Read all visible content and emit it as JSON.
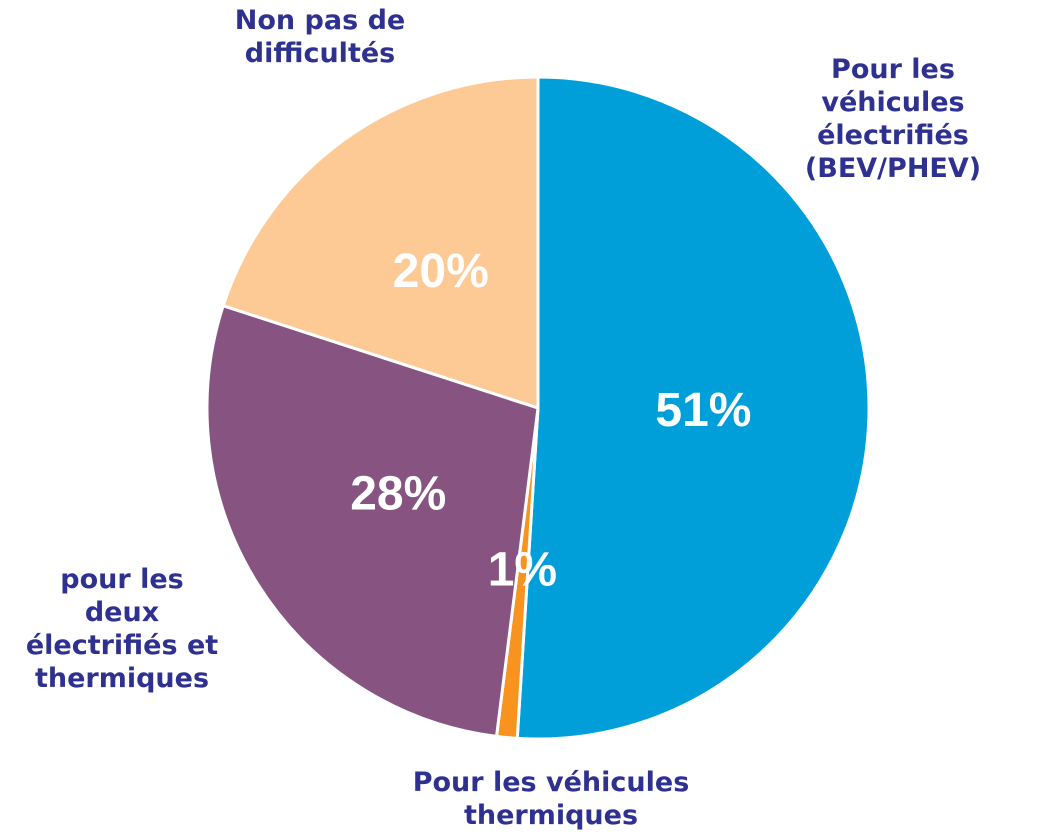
{
  "chart_data": {
    "type": "pie",
    "categories": [
      "Pour les véhicules\nélectrifiés\n(BEV/PHEV)",
      "Pour les véhicules\nthermiques",
      "pour les\ndeux\nélectrifiés et\nthermiques",
      "Non pas de\ndifficultés"
    ],
    "values": [
      51,
      1,
      28,
      20
    ],
    "value_labels": [
      "51%",
      "1%",
      "28%",
      "20%"
    ],
    "colors": [
      "#009fd9",
      "#f7931e",
      "#875482",
      "#fdc994"
    ]
  }
}
